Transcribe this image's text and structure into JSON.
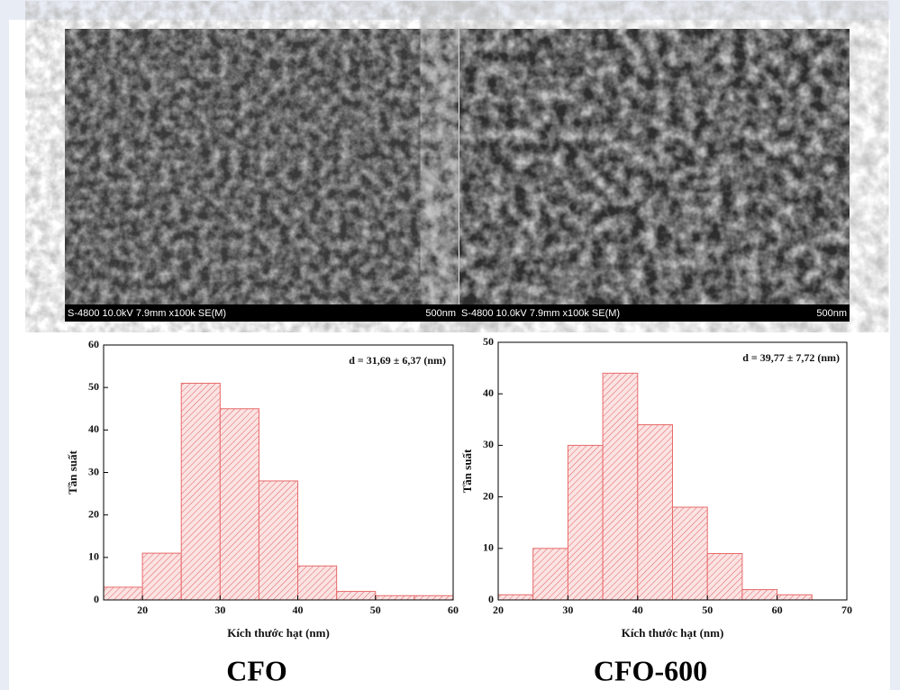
{
  "micrographs": [
    {
      "info": "S-4800 10.0kV 7.9mm x100k SE(M)",
      "scale": "500nm"
    },
    {
      "info": "S-4800 10.0kV 7.9mm x100k SE(M)",
      "scale": "500nm"
    }
  ],
  "chart_data": [
    {
      "type": "histogram",
      "title": "CFO",
      "annotation": "d = 31,69 ± 6,37 (nm)",
      "x_label": "Kích thước hạt (nm)",
      "y_label": "Tần suất",
      "bins": [
        15,
        20,
        25,
        30,
        35,
        40,
        45,
        50,
        55,
        60
      ],
      "values": [
        3,
        11,
        51,
        45,
        28,
        8,
        2,
        1,
        1
      ],
      "color": "#e86a6a",
      "xlim": [
        15,
        60
      ],
      "xticks": [
        20,
        30,
        40,
        50,
        60
      ],
      "ylim": [
        0,
        60
      ],
      "yticks": [
        0,
        10,
        20,
        30,
        40,
        50,
        60
      ]
    },
    {
      "type": "histogram",
      "title": "CFO-600",
      "annotation": "d = 39,77 ± 7,72 (nm)",
      "x_label": "Kích thước hạt (nm)",
      "y_label": "Tần suất",
      "bins": [
        20,
        25,
        30,
        35,
        40,
        45,
        50,
        55,
        60,
        65
      ],
      "values": [
        1,
        10,
        30,
        44,
        34,
        18,
        9,
        2,
        1
      ],
      "color": "#e86a6a",
      "xlim": [
        20,
        70
      ],
      "xticks": [
        20,
        30,
        40,
        50,
        60,
        70
      ],
      "ylim": [
        0,
        50
      ],
      "yticks": [
        0,
        10,
        20,
        30,
        40,
        50
      ]
    }
  ]
}
